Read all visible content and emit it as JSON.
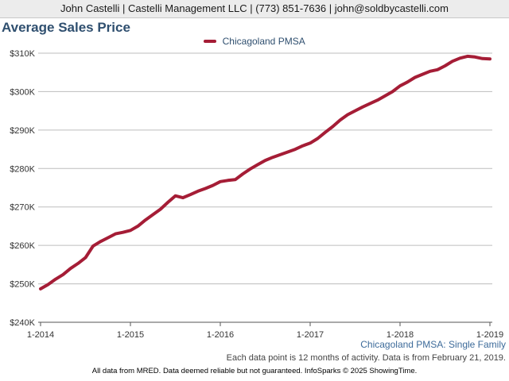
{
  "header": {
    "contact": "John Castelli | Castelli Management LLC | (773) 851-7636 | john@soldbycastelli.com"
  },
  "chart_data": {
    "type": "line",
    "title": "Average Sales Price",
    "legend": {
      "position": "top-center"
    },
    "grid": true,
    "ylim": [
      240000,
      310000
    ],
    "yticks": [
      {
        "value": 240000,
        "label": "$240K"
      },
      {
        "value": 250000,
        "label": "$250K"
      },
      {
        "value": 260000,
        "label": "$260K"
      },
      {
        "value": 270000,
        "label": "$270K"
      },
      {
        "value": 280000,
        "label": "$280K"
      },
      {
        "value": 290000,
        "label": "$290K"
      },
      {
        "value": 300000,
        "label": "$300K"
      },
      {
        "value": 310000,
        "label": "$310K"
      }
    ],
    "xticks": [
      "1-2014",
      "1-2015",
      "1-2016",
      "1-2017",
      "1-2018",
      "1-2019"
    ],
    "x": [
      "1-2014",
      "2-2014",
      "3-2014",
      "4-2014",
      "5-2014",
      "6-2014",
      "7-2014",
      "8-2014",
      "9-2014",
      "10-2014",
      "11-2014",
      "12-2014",
      "1-2015",
      "2-2015",
      "3-2015",
      "4-2015",
      "5-2015",
      "6-2015",
      "7-2015",
      "8-2015",
      "9-2015",
      "10-2015",
      "11-2015",
      "12-2015",
      "1-2016",
      "2-2016",
      "3-2016",
      "4-2016",
      "5-2016",
      "6-2016",
      "7-2016",
      "8-2016",
      "9-2016",
      "10-2016",
      "11-2016",
      "12-2016",
      "1-2017",
      "2-2017",
      "3-2017",
      "4-2017",
      "5-2017",
      "6-2017",
      "7-2017",
      "8-2017",
      "9-2017",
      "10-2017",
      "11-2017",
      "12-2017",
      "1-2018",
      "2-2018",
      "3-2018",
      "4-2018",
      "5-2018",
      "6-2018",
      "7-2018",
      "8-2018",
      "9-2018",
      "10-2018",
      "11-2018",
      "12-2018",
      "1-2019"
    ],
    "series": [
      {
        "name": "Chicagoland PMSA",
        "color": "#a51d36",
        "values": [
          248700,
          249800,
          251200,
          252400,
          254000,
          255300,
          256800,
          259800,
          261000,
          262000,
          263000,
          263400,
          263900,
          265000,
          266600,
          268000,
          269400,
          271200,
          272900,
          272400,
          273200,
          274100,
          274800,
          275600,
          276600,
          276900,
          277100,
          278600,
          279900,
          281000,
          282100,
          282900,
          283600,
          284300,
          285000,
          285900,
          286600,
          287800,
          289400,
          290900,
          292600,
          294000,
          295000,
          296000,
          296900,
          297800,
          298900,
          300000,
          301500,
          302500,
          303700,
          304500,
          305300,
          305700,
          306700,
          307900,
          308700,
          309200,
          309000,
          308600,
          308500
        ]
      }
    ]
  },
  "subtitle": "Chicagoland PMSA: Single Family",
  "note": "Each data point is 12 months of activity. Data is from February 21, 2019.",
  "footer": "All data from MRED. Data deemed reliable but not guaranteed. InfoSparks © 2025 ShowingTime."
}
